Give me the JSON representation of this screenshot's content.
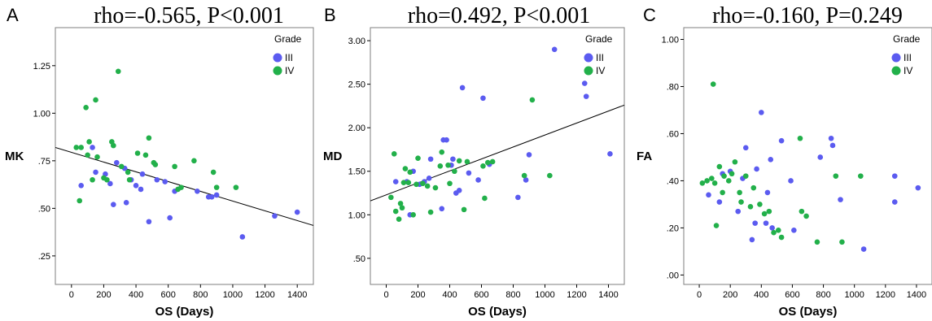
{
  "chart_data": [
    {
      "type": "scatter",
      "panel": "A",
      "title": "rho=-0.565, P<0.001",
      "xlabel": "OS (Days)",
      "ylabel": "MK",
      "xlim": [
        -100,
        1500
      ],
      "ylim": [
        0.1,
        1.45
      ],
      "xticks": [
        0,
        200,
        400,
        600,
        800,
        1000,
        1200,
        1400
      ],
      "yticks": [
        0.25,
        0.5,
        0.75,
        1.0,
        1.25
      ],
      "ytick_labels": [
        ".25",
        ".50",
        ".75",
        "1.00",
        "1.25"
      ],
      "legend": {
        "title": "Grade",
        "position": "top-right"
      },
      "series": [
        {
          "name": "III",
          "color": "#5b5bf0",
          "points": [
            [
              60,
              0.62
            ],
            [
              130,
              0.82
            ],
            [
              150,
              0.69
            ],
            [
              210,
              0.68
            ],
            [
              240,
              0.63
            ],
            [
              260,
              0.52
            ],
            [
              280,
              0.74
            ],
            [
              330,
              0.71
            ],
            [
              340,
              0.53
            ],
            [
              370,
              0.65
            ],
            [
              400,
              0.62
            ],
            [
              430,
              0.6
            ],
            [
              440,
              0.68
            ],
            [
              480,
              0.43
            ],
            [
              530,
              0.65
            ],
            [
              580,
              0.64
            ],
            [
              610,
              0.45
            ],
            [
              640,
              0.59
            ],
            [
              780,
              0.59
            ],
            [
              850,
              0.56
            ],
            [
              870,
              0.56
            ],
            [
              900,
              0.57
            ],
            [
              1060,
              0.35
            ],
            [
              1260,
              0.46
            ],
            [
              1400,
              0.48
            ]
          ]
        },
        {
          "name": "IV",
          "color": "#22b04a",
          "points": [
            [
              30,
              0.82
            ],
            [
              50,
              0.54
            ],
            [
              60,
              0.82
            ],
            [
              90,
              1.03
            ],
            [
              100,
              0.78
            ],
            [
              110,
              0.85
            ],
            [
              130,
              0.65
            ],
            [
              150,
              1.07
            ],
            [
              160,
              0.77
            ],
            [
              200,
              0.66
            ],
            [
              220,
              0.65
            ],
            [
              250,
              0.85
            ],
            [
              260,
              0.83
            ],
            [
              290,
              1.22
            ],
            [
              310,
              0.72
            ],
            [
              350,
              0.69
            ],
            [
              360,
              0.65
            ],
            [
              410,
              0.79
            ],
            [
              460,
              0.78
            ],
            [
              480,
              0.87
            ],
            [
              510,
              0.74
            ],
            [
              520,
              0.73
            ],
            [
              640,
              0.72
            ],
            [
              660,
              0.6
            ],
            [
              680,
              0.61
            ],
            [
              760,
              0.75
            ],
            [
              880,
              0.69
            ],
            [
              900,
              0.61
            ],
            [
              1020,
              0.61
            ]
          ]
        }
      ],
      "fit_line": {
        "x": [
          -100,
          1500
        ],
        "y": [
          0.82,
          0.41
        ]
      }
    },
    {
      "type": "scatter",
      "panel": "B",
      "title": "rho=0.492, P<0.001",
      "xlabel": "OS (Days)",
      "ylabel": "MD",
      "xlim": [
        -100,
        1500
      ],
      "ylim": [
        0.2,
        3.15
      ],
      "xticks": [
        0,
        200,
        400,
        600,
        800,
        1000,
        1200,
        1400
      ],
      "yticks": [
        0.5,
        1.0,
        1.5,
        2.0,
        2.5,
        3.0
      ],
      "ytick_labels": [
        ".50",
        "1.00",
        "1.50",
        "2.00",
        "2.50",
        "3.00"
      ],
      "legend": {
        "title": "Grade",
        "position": "top-right"
      },
      "series": [
        {
          "name": "III",
          "color": "#5b5bf0",
          "points": [
            [
              60,
              1.38
            ],
            [
              130,
              1.38
            ],
            [
              150,
              1.0
            ],
            [
              170,
              1.5
            ],
            [
              210,
              1.35
            ],
            [
              240,
              1.38
            ],
            [
              270,
              1.42
            ],
            [
              280,
              1.64
            ],
            [
              350,
              1.07
            ],
            [
              360,
              1.86
            ],
            [
              380,
              1.86
            ],
            [
              410,
              1.57
            ],
            [
              420,
              1.64
            ],
            [
              440,
              1.25
            ],
            [
              460,
              1.28
            ],
            [
              480,
              2.46
            ],
            [
              520,
              1.48
            ],
            [
              580,
              1.4
            ],
            [
              610,
              2.34
            ],
            [
              650,
              1.58
            ],
            [
              830,
              1.2
            ],
            [
              880,
              1.4
            ],
            [
              900,
              1.69
            ],
            [
              1060,
              2.9
            ],
            [
              1250,
              2.51
            ],
            [
              1260,
              2.36
            ],
            [
              1410,
              1.7
            ]
          ]
        },
        {
          "name": "IV",
          "color": "#22b04a",
          "points": [
            [
              30,
              1.2
            ],
            [
              50,
              1.7
            ],
            [
              60,
              1.04
            ],
            [
              80,
              0.95
            ],
            [
              90,
              1.13
            ],
            [
              100,
              1.08
            ],
            [
              110,
              1.37
            ],
            [
              120,
              1.53
            ],
            [
              140,
              1.37
            ],
            [
              150,
              1.49
            ],
            [
              170,
              1.0
            ],
            [
              190,
              1.35
            ],
            [
              200,
              1.65
            ],
            [
              230,
              1.36
            ],
            [
              260,
              1.33
            ],
            [
              280,
              1.03
            ],
            [
              310,
              1.31
            ],
            [
              340,
              1.56
            ],
            [
              350,
              1.72
            ],
            [
              390,
              1.57
            ],
            [
              400,
              1.36
            ],
            [
              430,
              1.5
            ],
            [
              460,
              1.62
            ],
            [
              490,
              1.06
            ],
            [
              510,
              1.61
            ],
            [
              610,
              1.56
            ],
            [
              620,
              1.19
            ],
            [
              640,
              1.6
            ],
            [
              670,
              1.61
            ],
            [
              870,
              1.45
            ],
            [
              920,
              2.32
            ],
            [
              1030,
              1.45
            ]
          ]
        }
      ],
      "fit_line": {
        "x": [
          -100,
          1500
        ],
        "y": [
          1.16,
          2.26
        ]
      }
    },
    {
      "type": "scatter",
      "panel": "C",
      "title": "rho=-0.160, P=0.249",
      "xlabel": "OS (Days)",
      "ylabel": "FA",
      "xlim": [
        -100,
        1500
      ],
      "ylim": [
        -0.04,
        1.05
      ],
      "xticks": [
        0,
        200,
        400,
        600,
        800,
        1000,
        1200,
        1400
      ],
      "yticks": [
        0.0,
        0.2,
        0.4,
        0.6,
        0.8,
        1.0
      ],
      "ytick_labels": [
        ".00",
        ".20",
        ".40",
        ".60",
        ".80",
        "1.00"
      ],
      "legend": {
        "title": "Grade",
        "position": "top-right"
      },
      "series": [
        {
          "name": "III",
          "color": "#5b5bf0",
          "points": [
            [
              60,
              0.34
            ],
            [
              130,
              0.31
            ],
            [
              150,
              0.43
            ],
            [
              200,
              0.44
            ],
            [
              250,
              0.27
            ],
            [
              280,
              0.41
            ],
            [
              300,
              0.54
            ],
            [
              340,
              0.15
            ],
            [
              360,
              0.22
            ],
            [
              370,
              0.45
            ],
            [
              400,
              0.69
            ],
            [
              430,
              0.22
            ],
            [
              440,
              0.35
            ],
            [
              460,
              0.49
            ],
            [
              470,
              0.2
            ],
            [
              530,
              0.57
            ],
            [
              590,
              0.4
            ],
            [
              610,
              0.19
            ],
            [
              780,
              0.5
            ],
            [
              850,
              0.58
            ],
            [
              860,
              0.55
            ],
            [
              910,
              0.32
            ],
            [
              1060,
              0.11
            ],
            [
              1260,
              0.42
            ],
            [
              1260,
              0.31
            ],
            [
              1410,
              0.37
            ]
          ]
        },
        {
          "name": "IV",
          "color": "#22b04a",
          "points": [
            [
              20,
              0.39
            ],
            [
              50,
              0.4
            ],
            [
              80,
              0.41
            ],
            [
              90,
              0.81
            ],
            [
              100,
              0.39
            ],
            [
              110,
              0.21
            ],
            [
              130,
              0.46
            ],
            [
              150,
              0.35
            ],
            [
              160,
              0.42
            ],
            [
              190,
              0.4
            ],
            [
              210,
              0.43
            ],
            [
              230,
              0.48
            ],
            [
              260,
              0.35
            ],
            [
              270,
              0.31
            ],
            [
              300,
              0.42
            ],
            [
              330,
              0.29
            ],
            [
              350,
              0.37
            ],
            [
              390,
              0.3
            ],
            [
              420,
              0.26
            ],
            [
              450,
              0.27
            ],
            [
              480,
              0.18
            ],
            [
              510,
              0.19
            ],
            [
              530,
              0.16
            ],
            [
              650,
              0.58
            ],
            [
              660,
              0.27
            ],
            [
              690,
              0.25
            ],
            [
              760,
              0.14
            ],
            [
              880,
              0.42
            ],
            [
              920,
              0.14
            ],
            [
              1040,
              0.42
            ]
          ]
        }
      ],
      "fit_line": null
    }
  ]
}
